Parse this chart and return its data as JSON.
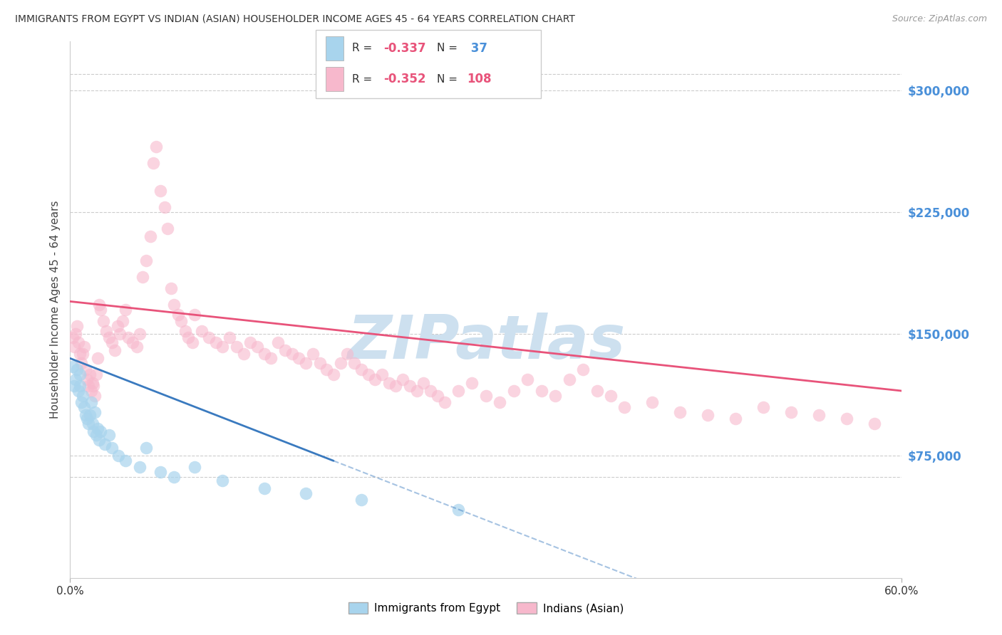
{
  "title": "IMMIGRANTS FROM EGYPT VS INDIAN (ASIAN) HOUSEHOLDER INCOME AGES 45 - 64 YEARS CORRELATION CHART",
  "source": "Source: ZipAtlas.com",
  "ylabel": "Householder Income Ages 45 - 64 years",
  "ytick_labels": [
    "$75,000",
    "$150,000",
    "$225,000",
    "$300,000"
  ],
  "ytick_values": [
    75000,
    150000,
    225000,
    300000
  ],
  "ymin": 0,
  "ymax": 330000,
  "xmin": 0.0,
  "xmax": 0.6,
  "R_egypt": -0.337,
  "N_egypt": 37,
  "R_indian": -0.352,
  "N_indian": 108,
  "legend_label_egypt": "Immigrants from Egypt",
  "legend_label_indian": "Indians (Asian)",
  "color_egypt": "#a8d4ed",
  "color_indian": "#f7b8cc",
  "line_color_egypt": "#3a7abf",
  "line_color_indian": "#e8537a",
  "watermark_color": "#cde0ef",
  "egypt_x": [
    0.002,
    0.003,
    0.004,
    0.005,
    0.006,
    0.007,
    0.007,
    0.008,
    0.009,
    0.01,
    0.011,
    0.012,
    0.013,
    0.014,
    0.015,
    0.016,
    0.017,
    0.018,
    0.019,
    0.02,
    0.021,
    0.022,
    0.025,
    0.028,
    0.03,
    0.035,
    0.04,
    0.05,
    0.055,
    0.065,
    0.075,
    0.09,
    0.11,
    0.14,
    0.17,
    0.21,
    0.28
  ],
  "egypt_y": [
    130000,
    118000,
    122000,
    128000,
    115000,
    118000,
    125000,
    108000,
    112000,
    105000,
    100000,
    98000,
    95000,
    100000,
    108000,
    95000,
    90000,
    102000,
    88000,
    92000,
    85000,
    90000,
    82000,
    88000,
    80000,
    75000,
    72000,
    68000,
    80000,
    65000,
    62000,
    68000,
    60000,
    55000,
    52000,
    48000,
    42000
  ],
  "indian_x": [
    0.002,
    0.003,
    0.004,
    0.005,
    0.006,
    0.007,
    0.008,
    0.009,
    0.01,
    0.011,
    0.012,
    0.013,
    0.014,
    0.015,
    0.016,
    0.017,
    0.018,
    0.019,
    0.02,
    0.021,
    0.022,
    0.024,
    0.026,
    0.028,
    0.03,
    0.032,
    0.034,
    0.036,
    0.038,
    0.04,
    0.042,
    0.045,
    0.048,
    0.05,
    0.052,
    0.055,
    0.058,
    0.06,
    0.062,
    0.065,
    0.068,
    0.07,
    0.073,
    0.075,
    0.078,
    0.08,
    0.083,
    0.085,
    0.088,
    0.09,
    0.095,
    0.1,
    0.105,
    0.11,
    0.115,
    0.12,
    0.125,
    0.13,
    0.135,
    0.14,
    0.145,
    0.15,
    0.155,
    0.16,
    0.165,
    0.17,
    0.175,
    0.18,
    0.185,
    0.19,
    0.195,
    0.2,
    0.205,
    0.21,
    0.215,
    0.22,
    0.225,
    0.23,
    0.235,
    0.24,
    0.245,
    0.25,
    0.255,
    0.26,
    0.265,
    0.27,
    0.28,
    0.29,
    0.3,
    0.31,
    0.32,
    0.33,
    0.34,
    0.35,
    0.36,
    0.37,
    0.38,
    0.39,
    0.4,
    0.42,
    0.44,
    0.46,
    0.48,
    0.5,
    0.52,
    0.54,
    0.56,
    0.58
  ],
  "indian_y": [
    148000,
    142000,
    150000,
    155000,
    145000,
    138000,
    132000,
    138000,
    142000,
    128000,
    122000,
    118000,
    125000,
    115000,
    120000,
    118000,
    112000,
    125000,
    135000,
    168000,
    165000,
    158000,
    152000,
    148000,
    145000,
    140000,
    155000,
    150000,
    158000,
    165000,
    148000,
    145000,
    142000,
    150000,
    185000,
    195000,
    210000,
    255000,
    265000,
    238000,
    228000,
    215000,
    178000,
    168000,
    162000,
    158000,
    152000,
    148000,
    145000,
    162000,
    152000,
    148000,
    145000,
    142000,
    148000,
    142000,
    138000,
    145000,
    142000,
    138000,
    135000,
    145000,
    140000,
    138000,
    135000,
    132000,
    138000,
    132000,
    128000,
    125000,
    132000,
    138000,
    132000,
    128000,
    125000,
    122000,
    125000,
    120000,
    118000,
    122000,
    118000,
    115000,
    120000,
    115000,
    112000,
    108000,
    115000,
    120000,
    112000,
    108000,
    115000,
    122000,
    115000,
    112000,
    122000,
    128000,
    115000,
    112000,
    105000,
    108000,
    102000,
    100000,
    98000,
    105000,
    102000,
    100000,
    98000,
    95000
  ]
}
